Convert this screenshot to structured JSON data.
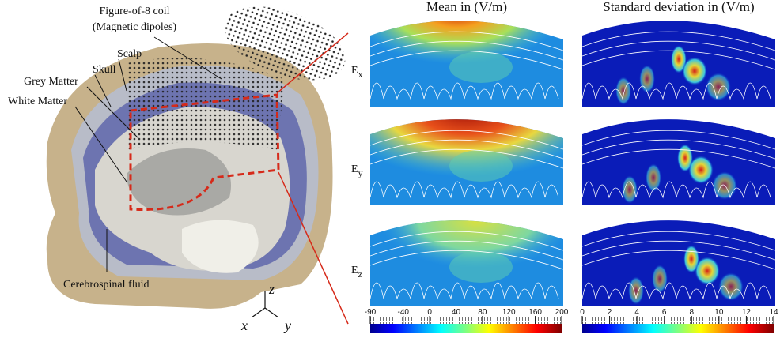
{
  "head_labels": [
    "Figure-of-8 coil",
    "(Magnetic dipoles)",
    "Scalp",
    "Skull",
    "Grey Matter",
    "White Matter",
    "Cerebrospinal fluid"
  ],
  "axis_labels": [
    "z",
    "x",
    "y"
  ],
  "columns": [
    "Mean in (V/m)",
    "Standard deviation in (V/m)"
  ],
  "rows": [
    {
      "base": "E",
      "sub": "x"
    },
    {
      "base": "E",
      "sub": "y"
    },
    {
      "base": "E",
      "sub": "z"
    }
  ],
  "colorbars": [
    {
      "ticks": [
        -90,
        -40,
        0,
        40,
        80,
        120,
        160,
        200
      ]
    },
    {
      "ticks": [
        0,
        2,
        4,
        6,
        8,
        10,
        12,
        14
      ]
    }
  ]
}
